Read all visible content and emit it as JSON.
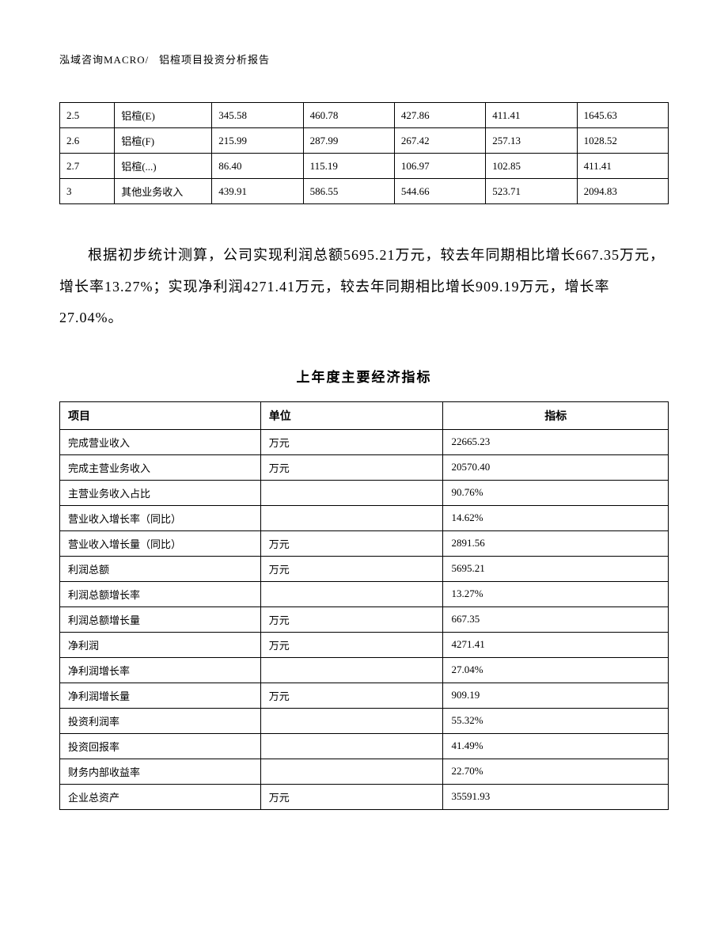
{
  "header": {
    "company": "泓域咨询MACRO/",
    "title": "铝楦项目投资分析报告"
  },
  "table1": {
    "rows": [
      {
        "c1": "2.5",
        "c2": "铝楦(E)",
        "c3": "345.58",
        "c4": "460.78",
        "c5": "427.86",
        "c6": "411.41",
        "c7": "1645.63"
      },
      {
        "c1": "2.6",
        "c2": "铝楦(F)",
        "c3": "215.99",
        "c4": "287.99",
        "c5": "267.42",
        "c6": "257.13",
        "c7": "1028.52"
      },
      {
        "c1": "2.7",
        "c2": "铝楦(...)",
        "c3": "86.40",
        "c4": "115.19",
        "c5": "106.97",
        "c6": "102.85",
        "c7": "411.41"
      },
      {
        "c1": "3",
        "c2": "其他业务收入",
        "c3": "439.91",
        "c4": "586.55",
        "c5": "544.66",
        "c6": "523.71",
        "c7": "2094.83"
      }
    ]
  },
  "paragraph": "根据初步统计测算，公司实现利润总额5695.21万元，较去年同期相比增长667.35万元，增长率13.27%；实现净利润4271.41万元，较去年同期相比增长909.19万元，增长率27.04%。",
  "table2": {
    "title": "上年度主要经济指标",
    "headers": {
      "h1": "项目",
      "h2": "单位",
      "h3": "指标"
    },
    "rows": [
      {
        "c1": "完成营业收入",
        "c2": "万元",
        "c3": "22665.23"
      },
      {
        "c1": "完成主营业务收入",
        "c2": "万元",
        "c3": "20570.40"
      },
      {
        "c1": "主营业务收入占比",
        "c2": "",
        "c3": "90.76%"
      },
      {
        "c1": "营业收入增长率（同比）",
        "c2": "",
        "c3": "14.62%"
      },
      {
        "c1": "营业收入增长量（同比）",
        "c2": "万元",
        "c3": "2891.56"
      },
      {
        "c1": "利润总额",
        "c2": "万元",
        "c3": "5695.21"
      },
      {
        "c1": "利润总额增长率",
        "c2": "",
        "c3": "13.27%"
      },
      {
        "c1": "利润总额增长量",
        "c2": "万元",
        "c3": "667.35"
      },
      {
        "c1": "净利润",
        "c2": "万元",
        "c3": "4271.41"
      },
      {
        "c1": "净利润增长率",
        "c2": "",
        "c3": "27.04%"
      },
      {
        "c1": "净利润增长量",
        "c2": "万元",
        "c3": "909.19"
      },
      {
        "c1": "投资利润率",
        "c2": "",
        "c3": "55.32%"
      },
      {
        "c1": "投资回报率",
        "c2": "",
        "c3": "41.49%"
      },
      {
        "c1": "财务内部收益率",
        "c2": "",
        "c3": "22.70%"
      },
      {
        "c1": "企业总资产",
        "c2": "万元",
        "c3": "35591.93"
      }
    ]
  }
}
